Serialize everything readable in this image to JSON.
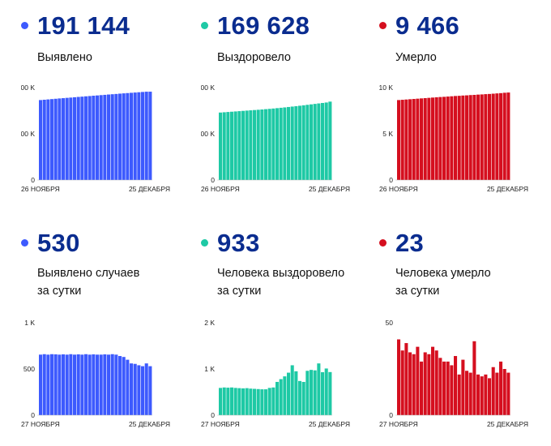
{
  "panels": [
    {
      "value": "191 144",
      "label_lines": [
        "Выявлено"
      ],
      "color": "#3d5afe",
      "chart_data": {
        "type": "bar",
        "series_color": "#3d5afe",
        "y_ticks": [
          {
            "v": 0,
            "t": "0"
          },
          {
            "v": 100000,
            "t": "100 K"
          },
          {
            "v": 200000,
            "t": "200 K"
          }
        ],
        "ylim": [
          0,
          200000
        ],
        "x_start_label": "26 НОЯБРЯ",
        "x_end_label": "25 ДЕКАБРЯ",
        "values": [
          173000,
          173700,
          174400,
          175100,
          175800,
          176500,
          177100,
          177800,
          178400,
          179100,
          179800,
          180400,
          181100,
          181700,
          182400,
          183000,
          183700,
          184300,
          185000,
          185600,
          186200,
          186900,
          187500,
          188100,
          188700,
          189300,
          189900,
          190500,
          191100,
          191144
        ]
      }
    },
    {
      "value": "169 628",
      "label_lines": [
        "Выздоровело"
      ],
      "color": "#1ec9a5",
      "chart_data": {
        "type": "bar",
        "series_color": "#1ec9a5",
        "y_ticks": [
          {
            "v": 0,
            "t": "0"
          },
          {
            "v": 100000,
            "t": "100 K"
          },
          {
            "v": 200000,
            "t": "200 K"
          }
        ],
        "ylim": [
          0,
          200000
        ],
        "x_start_label": "26 НОЯБРЯ",
        "x_end_label": "25 ДЕКАБРЯ",
        "values": [
          146000,
          146600,
          147200,
          147800,
          148400,
          149000,
          149600,
          150200,
          150800,
          151400,
          152000,
          152600,
          153300,
          154000,
          154700,
          155500,
          156300,
          157100,
          158000,
          158900,
          159800,
          160700,
          161700,
          162700,
          163700,
          164700,
          165700,
          166700,
          167700,
          169628
        ]
      }
    },
    {
      "value": "9 466",
      "label_lines": [
        "Умерло"
      ],
      "color": "#d50f1f",
      "chart_data": {
        "type": "bar",
        "series_color": "#d50f1f",
        "y_ticks": [
          {
            "v": 0,
            "t": "0"
          },
          {
            "v": 5000,
            "t": "5 K"
          },
          {
            "v": 10000,
            "t": "10 K"
          }
        ],
        "ylim": [
          0,
          10000
        ],
        "x_start_label": "26 НОЯБРЯ",
        "x_end_label": "25 ДЕКАБРЯ",
        "values": [
          8650,
          8680,
          8710,
          8740,
          8770,
          8800,
          8830,
          8860,
          8890,
          8920,
          8950,
          8980,
          9000,
          9030,
          9060,
          9090,
          9110,
          9140,
          9160,
          9190,
          9210,
          9240,
          9260,
          9290,
          9310,
          9340,
          9370,
          9400,
          9440,
          9466
        ]
      }
    },
    {
      "value": "530",
      "label_lines": [
        "Выявлено случаев",
        "за сутки"
      ],
      "color": "#3d5afe",
      "chart_data": {
        "type": "bar",
        "series_color": "#3d5afe",
        "y_ticks": [
          {
            "v": 0,
            "t": "0"
          },
          {
            "v": 500,
            "t": "500"
          },
          {
            "v": 1000,
            "t": "1 K"
          }
        ],
        "ylim": [
          0,
          1000
        ],
        "x_start_label": "27 НОЯБРЯ",
        "x_end_label": "25 ДЕКАБРЯ",
        "values": [
          655,
          660,
          655,
          660,
          658,
          655,
          658,
          655,
          660,
          655,
          658,
          655,
          660,
          655,
          658,
          655,
          655,
          658,
          655,
          660,
          655,
          640,
          630,
          600,
          560,
          555,
          540,
          530,
          560,
          530
        ]
      }
    },
    {
      "value": "933",
      "label_lines": [
        "Человека выздоровело",
        "за сутки"
      ],
      "color": "#1ec9a5",
      "chart_data": {
        "type": "bar",
        "series_color": "#1ec9a5",
        "y_ticks": [
          {
            "v": 0,
            "t": "0"
          },
          {
            "v": 1000,
            "t": "1 K"
          },
          {
            "v": 2000,
            "t": "2 K"
          }
        ],
        "ylim": [
          0,
          2000
        ],
        "x_start_label": "27 НОЯБРЯ",
        "x_end_label": "25 ДЕКАБРЯ",
        "values": [
          590,
          600,
          595,
          600,
          590,
          585,
          580,
          585,
          575,
          570,
          565,
          560,
          560,
          590,
          600,
          720,
          780,
          840,
          920,
          1080,
          950,
          740,
          720,
          960,
          980,
          970,
          1120,
          930,
          1010,
          933
        ]
      }
    },
    {
      "value": "23",
      "label_lines": [
        "Человека умерло",
        "за сутки"
      ],
      "color": "#d50f1f",
      "chart_data": {
        "type": "bar",
        "series_color": "#d50f1f",
        "y_ticks": [
          {
            "v": 0,
            "t": "0"
          },
          {
            "v": 50,
            "t": "50"
          }
        ],
        "ylim": [
          0,
          50
        ],
        "x_start_label": "27 НОЯБРЯ",
        "x_end_label": "25 ДЕКАБРЯ",
        "values": [
          41,
          35,
          39,
          34,
          33,
          37,
          29,
          34,
          33,
          37,
          35,
          31,
          29,
          29,
          27,
          32,
          22,
          30,
          24,
          23,
          40,
          22,
          21,
          22,
          20,
          26,
          23,
          29,
          25,
          23
        ]
      }
    }
  ]
}
